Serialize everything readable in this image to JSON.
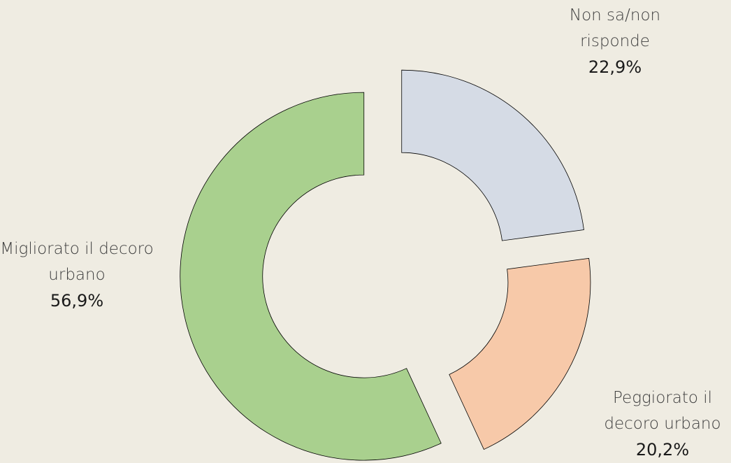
{
  "chart_data": {
    "type": "donut",
    "categories": [
      "Non sa/non risponde",
      "Peggiorato il decoro urbano",
      "Migliorato il decoro urbano"
    ],
    "values": [
      22.9,
      20.2,
      56.9
    ],
    "value_labels": [
      "22,9%",
      "20,2%",
      "56,9%"
    ],
    "colors": [
      "#d5dbe5",
      "#f7c9a9",
      "#a9d08e"
    ]
  }
}
